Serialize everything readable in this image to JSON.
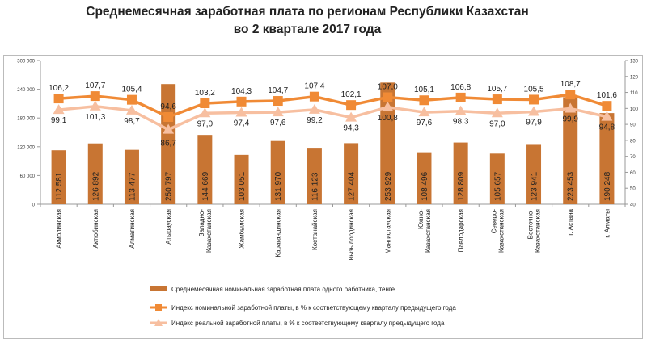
{
  "chart_data": {
    "type": "bar+line",
    "title_line1": "Среднемесячная заработная плата по регионам Республики Казахстан",
    "title_line2": "во 2 квартале 2017 года",
    "categories": [
      "Акмолинская",
      "Актюбинская",
      "Алматинская",
      "Атырауская",
      "Западно-Казахстанская",
      "Жамбылская",
      "Карагандинская",
      "Костанайская",
      "Кызылординская",
      "Мангистауская",
      "Южно-Казахстанская",
      "Павлодарская",
      "Северо-Казахстанская",
      "Восточно-Казахстанская",
      "г. Астана",
      "г. Алматы"
    ],
    "category_lines": [
      [
        "Акмолинская"
      ],
      [
        "Актюбинская"
      ],
      [
        "Алматинская"
      ],
      [
        "Атырауская"
      ],
      [
        "Западно-",
        "Казахстанская"
      ],
      [
        "Жамбылская"
      ],
      [
        "Карагандинская"
      ],
      [
        "Костанайская"
      ],
      [
        "Кызылординская"
      ],
      [
        "Мангистауская"
      ],
      [
        "Южно-",
        "Казахстанская"
      ],
      [
        "Павлодарская"
      ],
      [
        "Северо-",
        "Казахстанская"
      ],
      [
        "Восточно-",
        "Казахстанская"
      ],
      [
        "г. Астана"
      ],
      [
        "г. Алматы"
      ]
    ],
    "series": [
      {
        "name": "Среднемесячная номинальная заработная плата одного работника, тенге",
        "type": "bar",
        "axis": "left",
        "color": "#c87533",
        "values": [
          112581,
          126892,
          113477,
          250797,
          144669,
          103051,
          131970,
          116123,
          127404,
          253929,
          108496,
          128809,
          105657,
          123941,
          223453,
          190248
        ],
        "labels": [
          "112 581",
          "126 892",
          "113 477",
          "250 797",
          "144 669",
          "103 051",
          "131 970",
          "116 123",
          "127 404",
          "253 929",
          "108 496",
          "128 809",
          "105 657",
          "123 941",
          "223 453",
          "190 248"
        ]
      },
      {
        "name": "Индекс номинальной заработной платы, в % к соответствующему кварталу предыдущего года",
        "type": "line",
        "marker": "square",
        "axis": "right",
        "color": "#f08a35",
        "values": [
          106.2,
          107.7,
          105.4,
          94.6,
          103.2,
          104.3,
          104.7,
          107.4,
          102.1,
          107.0,
          105.1,
          106.8,
          105.7,
          105.5,
          108.7,
          101.6
        ],
        "labels": [
          "106,2",
          "107,7",
          "105,4",
          "94,6",
          "103,2",
          "104,3",
          "104,7",
          "107,4",
          "102,1",
          "107,0",
          "105,1",
          "106,8",
          "105,7",
          "105,5",
          "108,7",
          "101,6"
        ]
      },
      {
        "name": "Индекс реальной заработной платы, в % к соответствующему кварталу предыдущего года",
        "type": "line",
        "marker": "triangle",
        "axis": "right",
        "color": "#f7bfa0",
        "values": [
          99.1,
          101.3,
          98.7,
          86.7,
          97.0,
          97.4,
          97.6,
          99.2,
          94.3,
          100.8,
          97.6,
          98.3,
          97.0,
          97.9,
          99.9,
          94.8
        ],
        "labels": [
          "99,1",
          "101,3",
          "98,7",
          "86,7",
          "97,0",
          "97,4",
          "97,6",
          "99,2",
          "94,3",
          "100,8",
          "97,6",
          "98,3",
          "97,0",
          "97,9",
          "99,9",
          "94,8"
        ]
      }
    ],
    "left_axis": {
      "range": [
        0,
        300000
      ],
      "ticks": [
        "0",
        "60 000",
        "120 000",
        "180 000",
        "240 000",
        "300 000"
      ]
    },
    "right_axis": {
      "range": [
        40,
        130
      ],
      "ticks": [
        "40",
        "50",
        "60",
        "70",
        "80",
        "90",
        "100",
        "110",
        "120",
        "130"
      ]
    },
    "grid": false,
    "legend_placement": "bottom"
  }
}
